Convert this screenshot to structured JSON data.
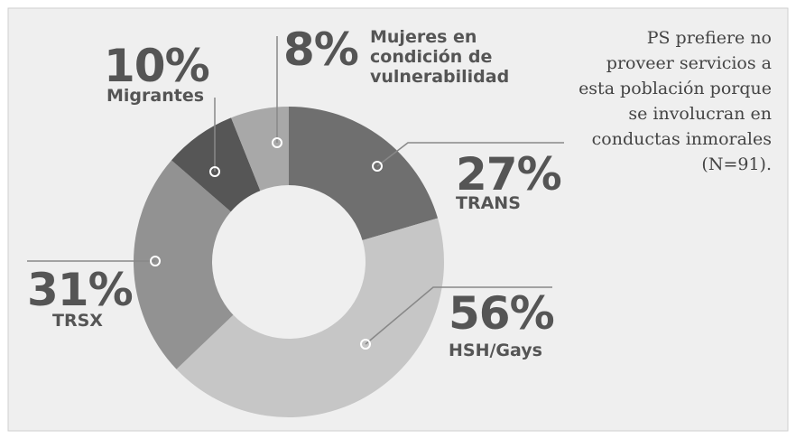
{
  "chart_data": {
    "type": "donut",
    "categories": [
      "TRANS",
      "HSH/Gays",
      "TRSX",
      "Migrantes",
      "Mujeres en condición de vulnerabilidad"
    ],
    "values": [
      27,
      56,
      31,
      10,
      8
    ],
    "value_labels": [
      "27%",
      "56%",
      "31%",
      "10%",
      "8%"
    ],
    "colors": [
      "#6f6f6f",
      "#c6c6c6",
      "#929292",
      "#565656",
      "#a8a8a8"
    ],
    "note": "PS prefiere no proveer servicios a esta población porque se involucran en conductas inmorales (N=91)."
  }
}
